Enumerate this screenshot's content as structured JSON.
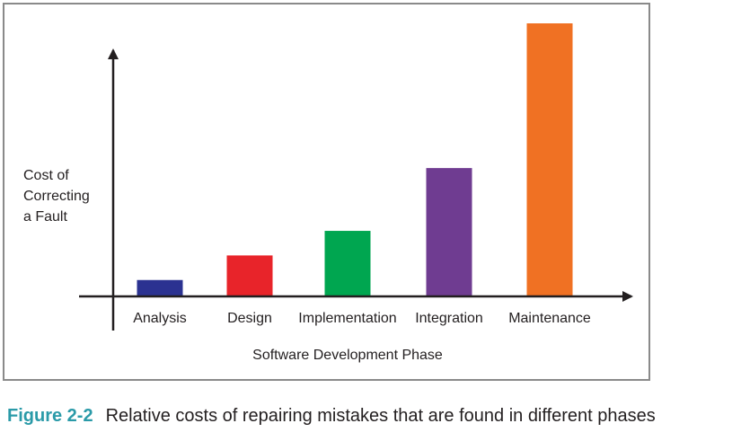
{
  "chart_data": {
    "type": "bar",
    "title": "",
    "xlabel": "Software Development Phase",
    "ylabel_lines": [
      "Cost of",
      "Correcting",
      "a Fault"
    ],
    "categories": [
      "Analysis",
      "Design",
      "Implementation",
      "Integration",
      "Maintenance"
    ],
    "values": [
      6,
      15,
      24,
      47,
      100
    ],
    "value_scale": "relative (no numeric axis shown)",
    "ylim": [
      0,
      115
    ],
    "grid": false,
    "legend": "none",
    "colors": [
      "#2b3291",
      "#e8242a",
      "#00a650",
      "#6f3c91",
      "#f07123"
    ]
  },
  "caption": {
    "figure_label": "Figure 2-2",
    "text": "Relative costs of repairing mistakes that are found in different phases"
  },
  "colors": {
    "axis": "#231f20",
    "frame": "#8a8a8a",
    "caption_accent": "#2a9aa8"
  }
}
